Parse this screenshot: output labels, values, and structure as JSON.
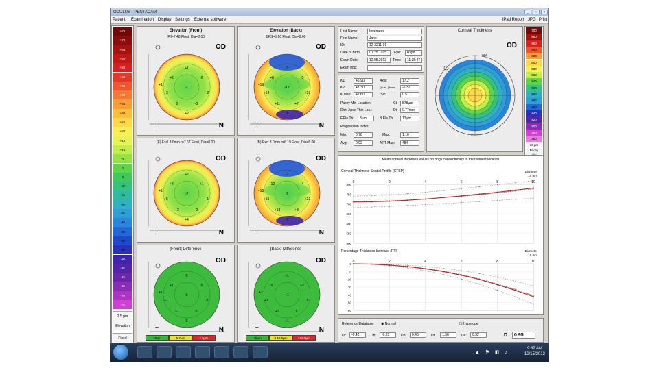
{
  "window": {
    "title": "OCULUS - PENTACAM"
  },
  "menu": {
    "items": [
      "Patient",
      "Examination",
      "Display",
      "Settings",
      "External software"
    ],
    "right_items": [
      "iPad Report",
      "JPG",
      "Print"
    ]
  },
  "color_scale": {
    "labels": [
      "+75",
      "+70",
      "+65",
      "+60",
      "+55",
      "+50",
      "+45",
      "+40",
      "+35",
      "+30",
      "+25",
      "+20",
      "+15",
      "+10",
      "+5",
      "0",
      "-5",
      "-10",
      "-15",
      "-20",
      "-25",
      "-30",
      "-35",
      "-40",
      "-45",
      "-50",
      "-55",
      "-60",
      "-65",
      "-70",
      "-75"
    ],
    "unit": "2.5 µm",
    "mode": "Elevation",
    "fixed": "Fixed"
  },
  "maps": [
    {
      "title": "Elevation (Front)",
      "subtitle": "[Fl]=7.48 Float, Dia=8.00",
      "od": "OD",
      "t": "T",
      "n": "N",
      "values": [
        "-1",
        "+2",
        "0",
        "+3",
        "-2",
        "+1",
        "0",
        "-3",
        "+2",
        "+1"
      ]
    },
    {
      "title": "Elevation (Back)",
      "subtitle": "BFS=6.16 Float, Dia=8.00",
      "od": "OD",
      "t": "T",
      "n": "N",
      "values": [
        "-12",
        "+8",
        "-5",
        "+14",
        "+20",
        "-3",
        "+11",
        "+7",
        "-9",
        "+16"
      ]
    },
    {
      "title": "Elevation (Front)",
      "subtitle": "(F) Excl 3.0mm r=7.57 Float, Dia=8.00",
      "od": "OD",
      "t": "T",
      "n": "N",
      "values": [
        "-2",
        "+4",
        "+1",
        "+5",
        "-1",
        "+2",
        "+3",
        "-2",
        "+4",
        "+1"
      ]
    },
    {
      "title": "Elevation (Back)",
      "subtitle": "(B) Excl 3.0mm r=6.19 Float, Dia=8.00",
      "od": "OD",
      "t": "T",
      "n": "N",
      "values": [
        "-9",
        "+12",
        "-4",
        "+15",
        "+21",
        "-2",
        "+13",
        "+8",
        "-7",
        "+18"
      ]
    },
    {
      "title": "[Front] Difference",
      "subtitle": "",
      "od": "OD",
      "t": "T",
      "n": "N",
      "values": [
        "0",
        "+1",
        "0",
        "+1",
        "-1",
        "0",
        "+1",
        "0",
        "0",
        "+1"
      ],
      "legend": [
        "<5µm",
        "5-7µm",
        ">7µm"
      ]
    },
    {
      "title": "[Back] Difference",
      "subtitle": "",
      "od": "OD",
      "t": "T",
      "n": "N",
      "values": [
        "+1",
        "0",
        "+2",
        "+1",
        "0",
        "+1",
        "+3",
        "0",
        "+1",
        "+2"
      ],
      "legend": [
        "<8µm",
        "8-12.5µm",
        ">12.5µm"
      ]
    }
  ],
  "patient": {
    "last_name_label": "Last Name:",
    "last_name": "Inverness",
    "first_name_label": "First Name:",
    "first_name": "Jane",
    "id_label": "ID:",
    "id": "12-3211-91",
    "dob_label": "Date of Birth:",
    "dob": "01.25.1995",
    "eye_label": "Eye:",
    "eye": "Right",
    "exam_date_label": "Exam Date:",
    "exam_date": "12.05.2013",
    "time_label": "Time:",
    "time": "11:35:47",
    "exam_info_label": "Exam Info:",
    "exam_info": ""
  },
  "keratometry": {
    "k1_label": "K1:",
    "k1": "46.9D",
    "k2_label": "K2:",
    "k2": "47.3D",
    "kmax_label": "K Max:",
    "kmax": "47.6D",
    "axis_label": "Axis:",
    "axis": "17.2",
    "qval_label": "Q-val. (8mm)",
    "qval": "-0.32",
    "dev_label": "ISV:",
    "dev": "0.5",
    "pachy_apex_label": "Pachy Min Location:",
    "pachy_apex_pre": "Ct",
    "pachy_apex": "578µm",
    "thinnest_label": "Dist. Apex Thin Loc.:",
    "thinnest_pre": "Dt",
    "thinnest": "0.77mm",
    "p_elev_label": "F.Ele.Th:",
    "p_elev": "3µm",
    "b_elev_label": "B.Ele.Th:",
    "b_elev": "13µm",
    "prog_label": "Progression Index:",
    "min_label": "Min:",
    "min": "0.78",
    "max_label": "Max:",
    "max": "1.16",
    "avg_label": "Avg:",
    "avg": "0.92",
    "art_label": "ART Max:",
    "art": "484"
  },
  "corneal_thickness": {
    "title": "Corneal Thickness",
    "od": "OD",
    "angle_top": "90°",
    "angle_bottom": "270°",
    "scale": [
      "700",
      "680",
      "660",
      "640",
      "620",
      "600",
      "580",
      "560",
      "540",
      "520",
      "500",
      "480",
      "460",
      "440",
      "420",
      "400",
      "380",
      "360"
    ],
    "unit": "10 µm",
    "mode": "Pachy",
    "fixed": "Abs"
  },
  "profile_header": "Mean corneal thickness values on rings concentrically to the thinnest location",
  "cts_chart": {
    "title": "Corneal Thickness Spatial Profile (CTSP)",
    "x_label": "Diameter",
    "x_unit": "10 mm",
    "x_ticks": [
      "0",
      "2",
      "4",
      "6",
      "8",
      "10"
    ],
    "y_ticks": [
      "800",
      "750",
      "700",
      "650",
      "600",
      "550",
      "500"
    ],
    "xlim": [
      0,
      10
    ],
    "ylim": [
      500,
      800
    ],
    "series": [
      {
        "name": "mean",
        "x": [
          0,
          1,
          2,
          3,
          4,
          5,
          6,
          7,
          8,
          9,
          10
        ],
        "values": [
          712,
          713,
          716,
          720,
          726,
          732,
          739,
          747,
          756,
          766,
          776
        ]
      },
      {
        "name": "upper",
        "x": [
          0,
          1,
          2,
          3,
          4,
          5,
          6,
          7,
          8,
          9,
          10
        ],
        "values": [
          740,
          742,
          746,
          752,
          760,
          768,
          778,
          788,
          798,
          808,
          818
        ]
      },
      {
        "name": "lower",
        "x": [
          0,
          1,
          2,
          3,
          4,
          5,
          6,
          7,
          8,
          9,
          10
        ],
        "values": [
          684,
          685,
          688,
          692,
          697,
          702,
          707,
          712,
          718,
          724,
          730
        ]
      },
      {
        "name": "patient",
        "x": [
          0,
          1,
          2,
          3,
          4,
          5,
          6,
          7,
          8,
          9,
          10
        ],
        "values": [
          710,
          711,
          714,
          719,
          725,
          733,
          741,
          750,
          760,
          770,
          781
        ]
      }
    ]
  },
  "pti_chart": {
    "title": "Percentage Thickness Increase (PTI)",
    "x_label": "Diameter",
    "x_unit": "10 mm",
    "x_ticks": [
      "0",
      "2",
      "4",
      "6",
      "8",
      "10"
    ],
    "y_ticks": [
      "0",
      "10",
      "20",
      "30",
      "40",
      "50",
      "60"
    ],
    "xlim": [
      0,
      10
    ],
    "ylim": [
      0,
      60
    ],
    "series": [
      {
        "name": "mean",
        "x": [
          0,
          1,
          2,
          3,
          4,
          5,
          6,
          7,
          8,
          9,
          10
        ],
        "values": [
          0,
          0.4,
          1.5,
          3.3,
          6,
          9.5,
          14,
          19.5,
          26,
          33,
          41
        ]
      },
      {
        "name": "upper",
        "x": [
          0,
          1,
          2,
          3,
          4,
          5,
          6,
          7,
          8,
          9,
          10
        ],
        "values": [
          0,
          0.7,
          2.5,
          5.2,
          9,
          13.8,
          19.6,
          26.3,
          34,
          42.5,
          52
        ]
      },
      {
        "name": "lower",
        "x": [
          0,
          1,
          2,
          3,
          4,
          5,
          6,
          7,
          8,
          9,
          10
        ],
        "values": [
          0,
          0.2,
          0.8,
          1.9,
          3.5,
          5.8,
          8.8,
          12.6,
          17.2,
          22.5,
          28.5
        ]
      },
      {
        "name": "patient",
        "x": [
          0,
          1,
          2,
          3,
          4,
          5,
          6,
          7,
          8,
          9,
          10
        ],
        "values": [
          0,
          0.5,
          1.7,
          3.6,
          6.4,
          10.1,
          14.7,
          20.2,
          27,
          34.2,
          42.3
        ]
      }
    ]
  },
  "reference": {
    "label": "Reference Database:",
    "normal": "Normal",
    "hyperope": "Hyperope",
    "df_label": "Df:",
    "df": "-0.42",
    "db_label": "Db:",
    "db": "-0.21",
    "dp_label": "Dp:",
    "dp": "0.48",
    "dt_label": "Dt:",
    "dt": "1.36",
    "da_label": "Da:",
    "da": "0.32",
    "d_label": "D:",
    "d": "0.95"
  },
  "taskbar": {
    "time": "9:37 AM",
    "date": "10/15/2013"
  }
}
